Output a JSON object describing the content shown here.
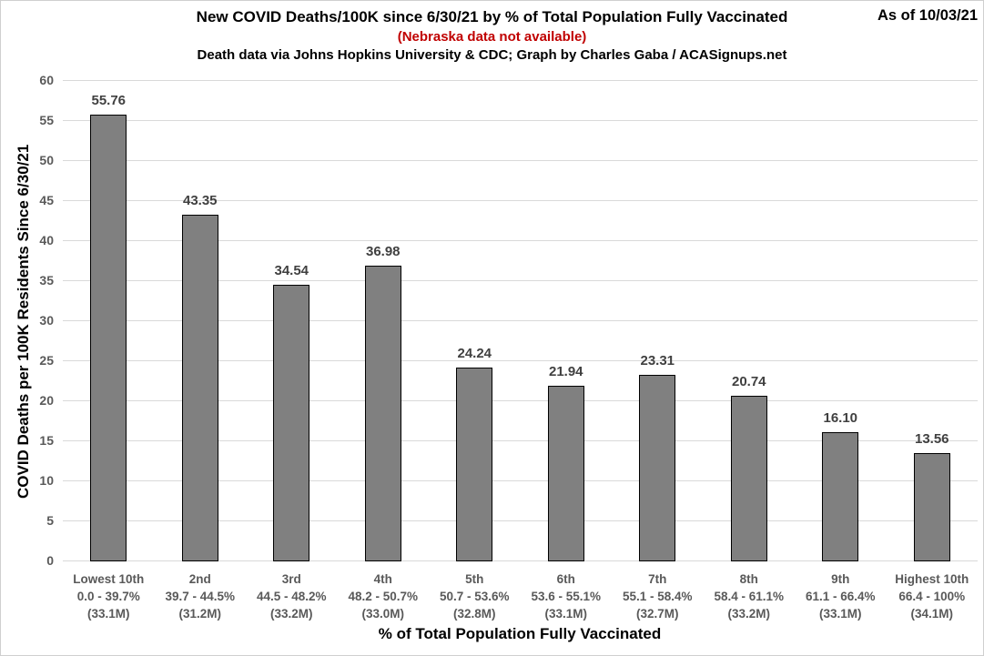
{
  "header": {
    "title": "New COVID Deaths/100K since 6/30/21 by % of Total Population Fully Vaccinated",
    "as_of": "As of 10/03/21",
    "note": "(Nebraska data not available)",
    "credit": "Death data via Johns Hopkins University & CDC; Graph by Charles Gaba / ACASignups.net"
  },
  "chart_data": {
    "type": "bar",
    "title": "New COVID Deaths/100K since 6/30/21 by % of Total Population Fully Vaccinated",
    "xlabel": "% of Total Population Fully Vaccinated",
    "ylabel": "COVID Deaths per 100K Residents Since 6/30/21",
    "ylim": [
      0,
      60
    ],
    "ytick_step": 5,
    "grid": true,
    "legend": "none",
    "categories": [
      "Lowest 10th",
      "2nd",
      "3rd",
      "4th",
      "5th",
      "6th",
      "7th",
      "8th",
      "9th",
      "Highest 10th"
    ],
    "category_ranges": [
      "0.0 - 39.7%",
      "39.7 - 44.5%",
      "44.5 - 48.2%",
      "48.2 - 50.7%",
      "50.7 - 53.6%",
      "53.6 - 55.1%",
      "55.1 - 58.4%",
      "58.4 - 61.1%",
      "61.1 - 66.4%",
      "66.4 - 100%"
    ],
    "category_populations": [
      "(33.1M)",
      "(31.2M)",
      "(33.2M)",
      "(33.0M)",
      "(32.8M)",
      "(33.1M)",
      "(32.7M)",
      "(33.2M)",
      "(33.1M)",
      "(34.1M)"
    ],
    "values": [
      55.76,
      43.35,
      34.54,
      36.98,
      24.24,
      21.94,
      23.31,
      20.74,
      16.1,
      13.56
    ],
    "value_labels": [
      "55.76",
      "43.35",
      "34.54",
      "36.98",
      "24.24",
      "21.94",
      "23.31",
      "20.74",
      "16.10",
      "13.56"
    ]
  },
  "colors": {
    "note_red": "#C00000",
    "bar_fill": "#808080",
    "bar_border": "#000000",
    "gridline": "#D9D9D9",
    "axis_tick_text": "#595959",
    "category_text": "#595959",
    "data_label_text": "#404040",
    "title_text": "#000000"
  }
}
